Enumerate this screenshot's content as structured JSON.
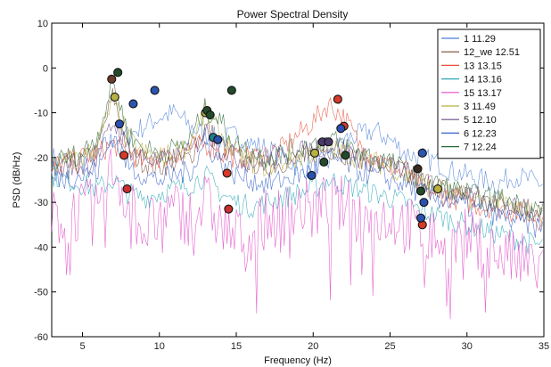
{
  "chart_data": {
    "type": "line",
    "title": "Power Spectral Density",
    "xlabel": "Frequency (Hz)",
    "ylabel": "PSD (dB/Hz)",
    "xlim": [
      3,
      35
    ],
    "ylim": [
      -60,
      10
    ],
    "xticks": [
      5,
      10,
      15,
      20,
      25,
      30,
      35
    ],
    "yticks": [
      -60,
      -50,
      -40,
      -30,
      -20,
      -10,
      0,
      10
    ],
    "grid": false,
    "legend_position": "top-right",
    "series": [
      {
        "name": "1 11.29",
        "color": "#4a7fd6",
        "x": [
          3,
          5,
          6,
          7,
          8,
          9,
          10,
          11,
          12,
          13,
          14,
          15,
          16,
          17,
          18,
          19,
          20,
          21,
          22,
          23,
          24,
          25,
          26,
          27,
          28,
          29,
          30,
          31,
          32,
          33,
          34,
          35
        ],
        "y": [
          -20,
          -21,
          -19,
          -16,
          -15,
          -13,
          -11,
          -10,
          -13,
          -15,
          -16,
          -15,
          -17,
          -18,
          -20,
          -22,
          -22,
          -21,
          -16,
          -15,
          -14,
          -16,
          -19,
          -20,
          -21,
          -23,
          -24,
          -25,
          -26,
          -24,
          -25,
          -26
        ],
        "markers": [
          {
            "x": 8.3,
            "y": -8,
            "color": "#2c55b0"
          },
          {
            "x": 9.7,
            "y": -5,
            "color": "#2c55b0"
          },
          {
            "x": 27.1,
            "y": -19,
            "color": "#2c55b0"
          }
        ]
      },
      {
        "name": "12_we 12.51",
        "color": "#7a4a3a",
        "x": [
          3,
          5,
          6,
          7,
          8,
          9,
          10,
          11,
          12,
          13,
          14,
          15,
          16,
          17,
          18,
          19,
          20,
          21,
          22,
          23,
          24,
          25,
          26,
          27,
          28,
          29,
          30,
          31,
          32,
          33,
          34,
          35
        ],
        "y": [
          -23,
          -21,
          -18,
          -6,
          -19,
          -21,
          -22,
          -21,
          -20,
          -13,
          -17,
          -20,
          -21,
          -22,
          -21,
          -20,
          -19,
          -18,
          -19,
          -20,
          -21,
          -22,
          -23,
          -25,
          -26,
          -28,
          -28,
          -29,
          -30,
          -30,
          -31,
          -32
        ],
        "markers": [
          {
            "x": 6.9,
            "y": -2.5,
            "color": "#6b3a2a"
          },
          {
            "x": 26.8,
            "y": -22.5,
            "color": "#3a2a22"
          }
        ]
      },
      {
        "name": "13  13.15",
        "color": "#e8503a",
        "x": [
          3,
          5,
          6,
          7,
          8,
          9,
          10,
          11,
          12,
          13,
          14,
          15,
          16,
          17,
          18,
          19,
          20,
          21,
          22,
          23,
          24,
          25,
          26,
          27,
          28,
          29,
          30,
          31,
          32,
          33,
          34,
          35
        ],
        "y": [
          -22,
          -20,
          -19,
          -17,
          -19,
          -21,
          -20,
          -19,
          -18,
          -17,
          -19,
          -20,
          -20,
          -19,
          -18,
          -15,
          -12,
          -8,
          -11,
          -17,
          -20,
          -22,
          -24,
          -27,
          -28,
          -29,
          -30,
          -31,
          -31,
          -32,
          -33,
          -34
        ],
        "markers": [
          {
            "x": 7.7,
            "y": -19.5,
            "color": "#d63a2a"
          },
          {
            "x": 14.4,
            "y": -23.5,
            "color": "#d63a2a"
          },
          {
            "x": 21.6,
            "y": -7,
            "color": "#d63a2a"
          },
          {
            "x": 22.0,
            "y": -13,
            "color": "#d63a2a"
          },
          {
            "x": 27.1,
            "y": -35,
            "color": "#d63a2a"
          }
        ]
      },
      {
        "name": "14  13.16",
        "color": "#2aa8b8",
        "x": [
          3,
          5,
          6,
          7,
          8,
          9,
          10,
          11,
          12,
          13,
          14,
          15,
          16,
          17,
          18,
          19,
          20,
          21,
          22,
          23,
          24,
          25,
          26,
          27,
          28,
          29,
          30,
          31,
          32,
          33,
          34,
          35
        ],
        "y": [
          -24,
          -26,
          -27,
          -25,
          -28,
          -29,
          -28,
          -27,
          -26,
          -24,
          -28,
          -30,
          -31,
          -30,
          -29,
          -28,
          -27,
          -25,
          -26,
          -27,
          -28,
          -29,
          -30,
          -32,
          -33,
          -34,
          -35,
          -36,
          -37,
          -38,
          -39,
          -40
        ],
        "markers": [
          {
            "x": 13.5,
            "y": -15.5,
            "color": "#1f7f8f"
          }
        ]
      },
      {
        "name": "15  13.17",
        "color": "#e04cc8",
        "x": [
          3,
          5,
          6,
          7,
          8,
          9,
          10,
          11,
          12,
          13,
          14,
          15,
          16,
          17,
          18,
          19,
          20,
          21,
          22,
          23,
          24,
          25,
          26,
          27,
          28,
          29,
          30,
          31,
          32,
          33,
          34,
          35
        ],
        "y": [
          -34,
          -32,
          -31,
          -22,
          -30,
          -36,
          -34,
          -32,
          -33,
          -30,
          -35,
          -38,
          -36,
          -34,
          -33,
          -31,
          -32,
          -30,
          -31,
          -33,
          -34,
          -33,
          -35,
          -37,
          -38,
          -39,
          -38,
          -40,
          -41,
          -43,
          -44,
          -45
        ],
        "markers": [
          {
            "x": 7.9,
            "y": -27,
            "color": "#c83030"
          },
          {
            "x": 14.5,
            "y": -31.5,
            "color": "#c83030"
          }
        ]
      },
      {
        "name": "3 11.49",
        "color": "#b8b040",
        "x": [
          3,
          5,
          6,
          7,
          8,
          9,
          10,
          11,
          12,
          13,
          14,
          15,
          16,
          17,
          18,
          19,
          20,
          21,
          22,
          23,
          24,
          25,
          26,
          27,
          28,
          29,
          30,
          31,
          32,
          33,
          34,
          35
        ],
        "y": [
          -22,
          -20,
          -17,
          -7,
          -16,
          -19,
          -20,
          -19,
          -17,
          -10,
          -15,
          -19,
          -21,
          -22,
          -21,
          -20,
          -19,
          -18,
          -19,
          -20,
          -21,
          -22,
          -24,
          -26,
          -27,
          -28,
          -29,
          -30,
          -30,
          -31,
          -32,
          -33
        ],
        "markers": [
          {
            "x": 7.1,
            "y": -6.5,
            "color": "#b8b040"
          },
          {
            "x": 13.0,
            "y": -10,
            "color": "#b8b040"
          },
          {
            "x": 20.1,
            "y": -19,
            "color": "#b8b040"
          },
          {
            "x": 28.1,
            "y": -27,
            "color": "#b8b040"
          }
        ]
      },
      {
        "name": "5 12.10",
        "color": "#6a4a8a",
        "x": [
          3,
          5,
          6,
          7,
          8,
          9,
          10,
          11,
          12,
          13,
          14,
          15,
          16,
          17,
          18,
          19,
          20,
          21,
          22,
          23,
          24,
          25,
          26,
          27,
          28,
          29,
          30,
          31,
          32,
          33,
          34,
          35
        ],
        "y": [
          -23,
          -22,
          -20,
          -12,
          -18,
          -20,
          -21,
          -20,
          -19,
          -14,
          -18,
          -20,
          -21,
          -21,
          -20,
          -19,
          -18,
          -17,
          -18,
          -20,
          -21,
          -22,
          -23,
          -25,
          -27,
          -28,
          -29,
          -30,
          -30,
          -31,
          -32,
          -33
        ],
        "markers": [
          {
            "x": 20.6,
            "y": -16.5,
            "color": "#4a3a6a"
          },
          {
            "x": 21.0,
            "y": -16.5,
            "color": "#4a3a6a"
          }
        ]
      },
      {
        "name": "6 12.23",
        "color": "#3560c8",
        "x": [
          3,
          5,
          6,
          7,
          8,
          9,
          10,
          11,
          12,
          13,
          14,
          15,
          16,
          17,
          18,
          19,
          20,
          21,
          22,
          23,
          24,
          25,
          26,
          27,
          28,
          29,
          30,
          31,
          32,
          33,
          34,
          35
        ],
        "y": [
          -25,
          -24,
          -23,
          -15,
          -22,
          -24,
          -25,
          -24,
          -23,
          -17,
          -21,
          -24,
          -25,
          -26,
          -25,
          -24,
          -23,
          -20,
          -21,
          -23,
          -24,
          -25,
          -26,
          -28,
          -29,
          -30,
          -31,
          -32,
          -33,
          -34,
          -35,
          -36
        ],
        "markers": [
          {
            "x": 7.4,
            "y": -12.5,
            "color": "#2a50b0"
          },
          {
            "x": 13.8,
            "y": -16,
            "color": "#2a50b0"
          },
          {
            "x": 19.9,
            "y": -24,
            "color": "#2a50b0"
          },
          {
            "x": 21.8,
            "y": -13.5,
            "color": "#2a50b0"
          },
          {
            "x": 27.0,
            "y": -33.5,
            "color": "#2a50b0"
          },
          {
            "x": 27.2,
            "y": -30,
            "color": "#2a50b0"
          }
        ]
      },
      {
        "name": "7 12.24",
        "color": "#2a6a3a",
        "x": [
          3,
          5,
          6,
          7,
          8,
          9,
          10,
          11,
          12,
          13,
          14,
          15,
          16,
          17,
          18,
          19,
          20,
          21,
          22,
          23,
          24,
          25,
          26,
          27,
          28,
          29,
          30,
          31,
          32,
          33,
          34,
          35
        ],
        "y": [
          -21,
          -19,
          -15,
          -3,
          -15,
          -18,
          -19,
          -18,
          -16,
          -9,
          -12,
          -17,
          -19,
          -20,
          -19,
          -18,
          -17,
          -16,
          -17,
          -19,
          -20,
          -21,
          -23,
          -25,
          -26,
          -27,
          -28,
          -29,
          -29,
          -30,
          -31,
          -32
        ],
        "markers": [
          {
            "x": 7.3,
            "y": -1,
            "color": "#234a2a"
          },
          {
            "x": 13.1,
            "y": -9.5,
            "color": "#234a2a"
          },
          {
            "x": 13.3,
            "y": -10.5,
            "color": "#234a2a"
          },
          {
            "x": 14.7,
            "y": -5,
            "color": "#234a2a"
          },
          {
            "x": 20.7,
            "y": -21,
            "color": "#234a2a"
          },
          {
            "x": 22.1,
            "y": -19.5,
            "color": "#234a2a"
          },
          {
            "x": 27.0,
            "y": -27.5,
            "color": "#234a2a"
          }
        ]
      }
    ]
  }
}
